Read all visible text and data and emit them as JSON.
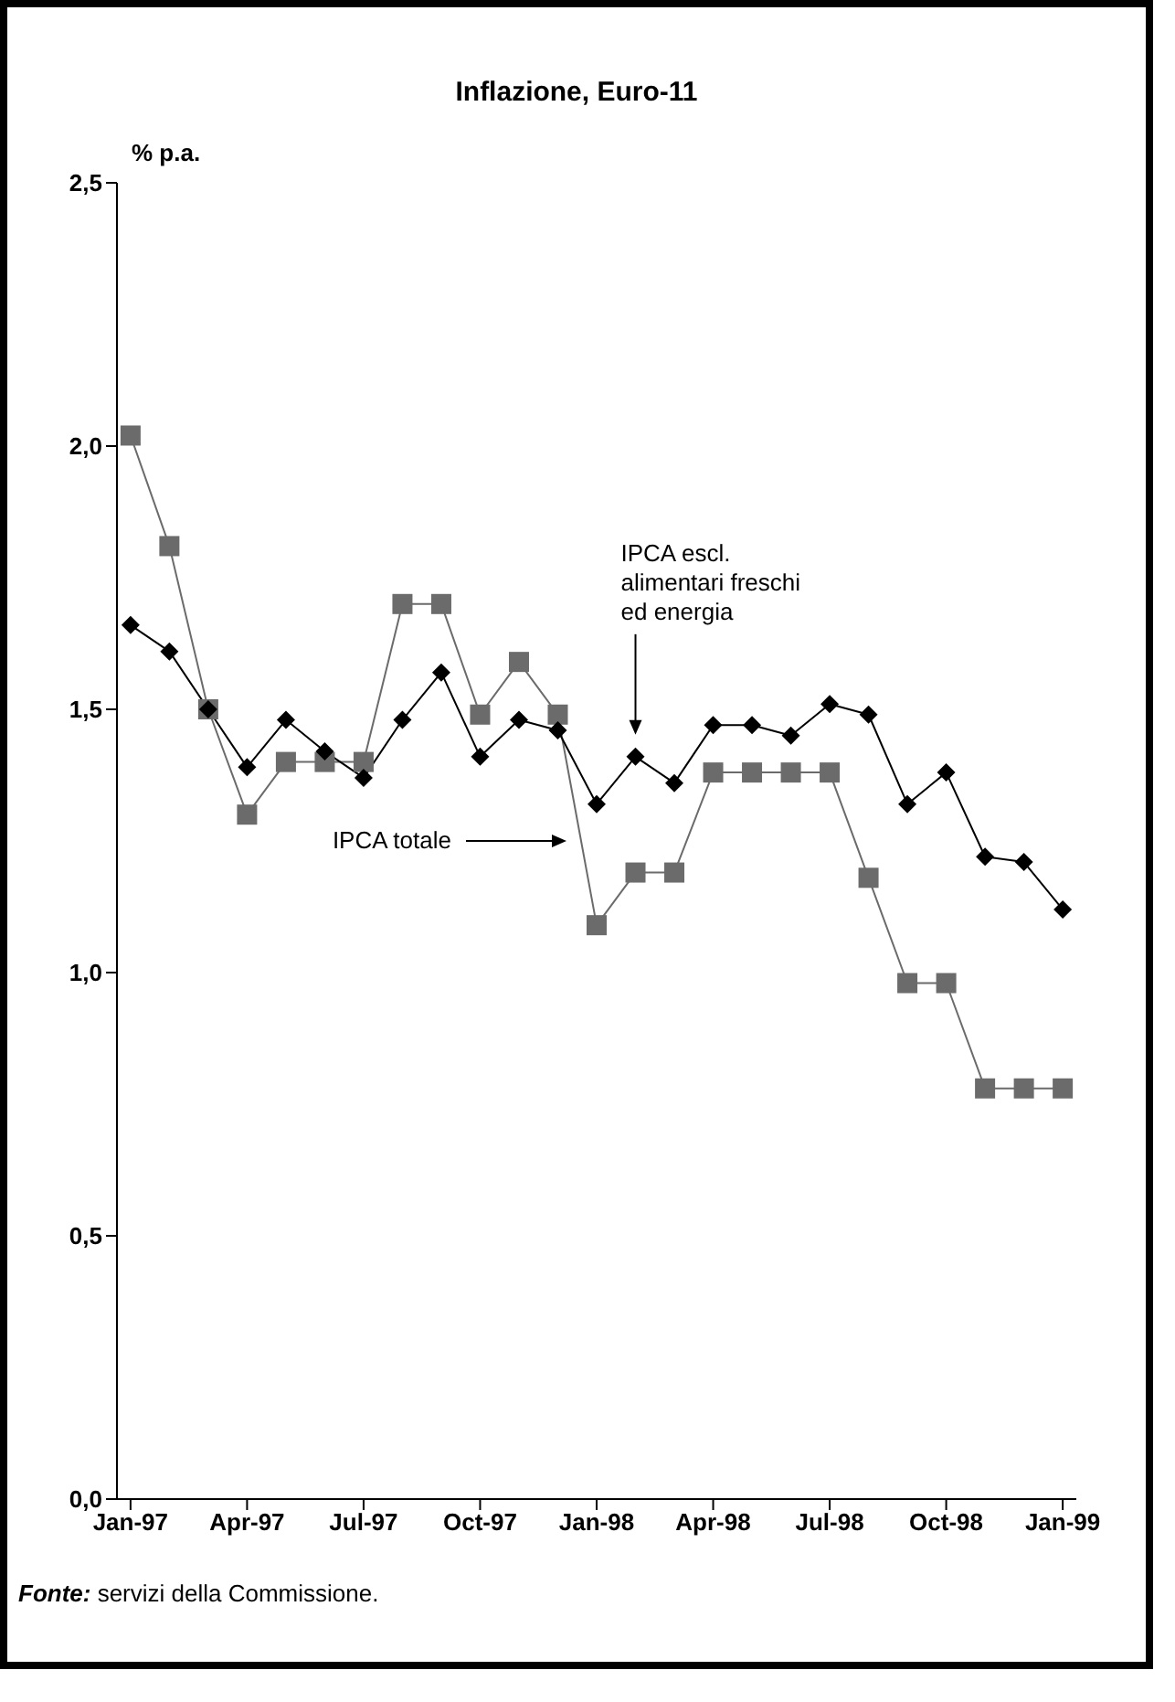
{
  "chart_data": {
    "type": "line",
    "title": "Inflazione, Euro-11",
    "ylabel": "% p.a.",
    "categories": [
      "Jan-97",
      null,
      null,
      "Apr-97",
      null,
      null,
      "Jul-97",
      null,
      null,
      "Oct-97",
      null,
      null,
      "Jan-98",
      null,
      null,
      "Apr-98",
      null,
      null,
      "Jul-98",
      null,
      null,
      "Oct-98",
      null,
      null,
      "Jan-99"
    ],
    "series": [
      {
        "color": "#6b6b6b",
        "marker": "square",
        "values": [
          2.02,
          1.81,
          1.5,
          1.3,
          1.4,
          1.4,
          1.4,
          1.7,
          1.7,
          1.49,
          1.59,
          1.49,
          1.09,
          1.19,
          1.19,
          1.38,
          1.38,
          1.38,
          1.38,
          1.18,
          0.98,
          0.98,
          0.78,
          0.78,
          0.78
        ]
      },
      {
        "color": "#000000",
        "marker": "diamond",
        "values": [
          1.66,
          1.61,
          1.5,
          1.39,
          1.48,
          1.42,
          1.37,
          1.48,
          1.57,
          1.41,
          1.48,
          1.46,
          1.32,
          1.41,
          1.36,
          1.47,
          1.47,
          1.45,
          1.51,
          1.49,
          1.32,
          1.38,
          1.22,
          1.21,
          1.12
        ]
      }
    ],
    "ylim": [
      0,
      2.5
    ],
    "yticks": [
      {
        "value": 0,
        "label": "0,0"
      },
      {
        "value": 0.5,
        "label": "0,5"
      },
      {
        "value": 1,
        "label": "1,0"
      },
      {
        "value": 1.5,
        "label": "1,5"
      },
      {
        "value": 2,
        "label": "2,0"
      },
      {
        "value": 2.5,
        "label": "2,5"
      }
    ],
    "grid": false,
    "legend": false,
    "line_style": "solid",
    "annotations": [
      "IPCA totale",
      "IPCA escl. alimentari freschi ed energia",
      "Fonte: servizi della Commissione."
    ]
  }
}
